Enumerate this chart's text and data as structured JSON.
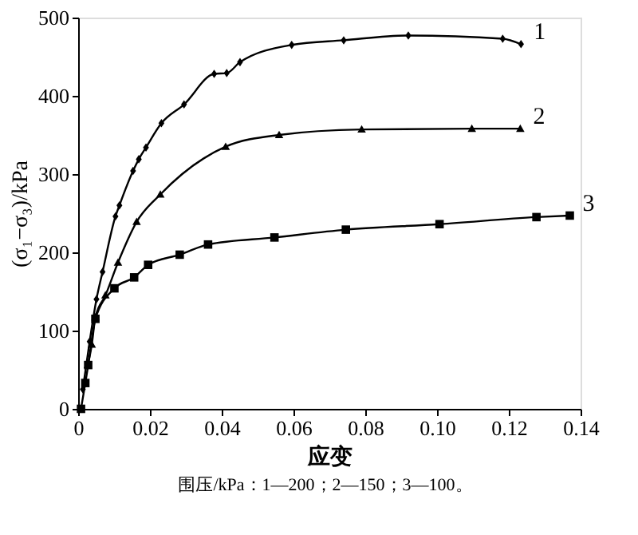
{
  "chart_data": {
    "type": "line",
    "xlabel": "应变",
    "ylabel": "(σ₁−σ₃)/kPa",
    "annotations": [
      "围压/kPa：1—200；2—150；3—100。"
    ],
    "xlim": [
      0,
      0.14
    ],
    "xticks": [
      0,
      0.02,
      0.04,
      0.06,
      0.08,
      {
        "value": 0.1,
        "label": "0.10"
      },
      0.12,
      0.14
    ],
    "ylim": [
      0,
      500
    ],
    "yticks": [
      0,
      100,
      200,
      300,
      400,
      500
    ],
    "grid": false,
    "line_style": "solid",
    "series": [
      {
        "name": "1",
        "color": "#000000",
        "marker": "diamond",
        "x": [
          0.0013,
          0.0032,
          0.0051,
          0.0068,
          0.0104,
          0.0115,
          0.0153,
          0.0169,
          0.0189,
          0.0232,
          0.0295,
          0.0379,
          0.0414,
          0.0451,
          0.0595,
          0.074,
          0.092,
          0.1183,
          0.1234
        ],
        "values": [
          25,
          86,
          140,
          175,
          246,
          260,
          304,
          319,
          334,
          365,
          389,
          428,
          429,
          443,
          465,
          471,
          477,
          473,
          466
        ]
      },
      {
        "name": "2",
        "color": "#000000",
        "marker": "triangle",
        "x": [
          0.0027,
          0.0038,
          0.0048,
          0.0076,
          0.0111,
          0.0163,
          0.0229,
          0.0411,
          0.056,
          0.079,
          0.1097,
          0.1232
        ],
        "values": [
          56,
          82,
          117,
          145,
          187,
          239,
          274,
          335,
          350,
          357,
          358,
          358
        ]
      },
      {
        "name": "3",
        "color": "#000000",
        "marker": "square",
        "x": [
          0.0008,
          0.002,
          0.0028,
          0.0048,
          0.0101,
          0.0156,
          0.0195,
          0.0283,
          0.0362,
          0.0547,
          0.0746,
          0.1007,
          0.1277,
          0.137
        ],
        "values": [
          0,
          33,
          56,
          115,
          154,
          168,
          184,
          197,
          210,
          219,
          229,
          236,
          245,
          247
        ]
      }
    ]
  }
}
